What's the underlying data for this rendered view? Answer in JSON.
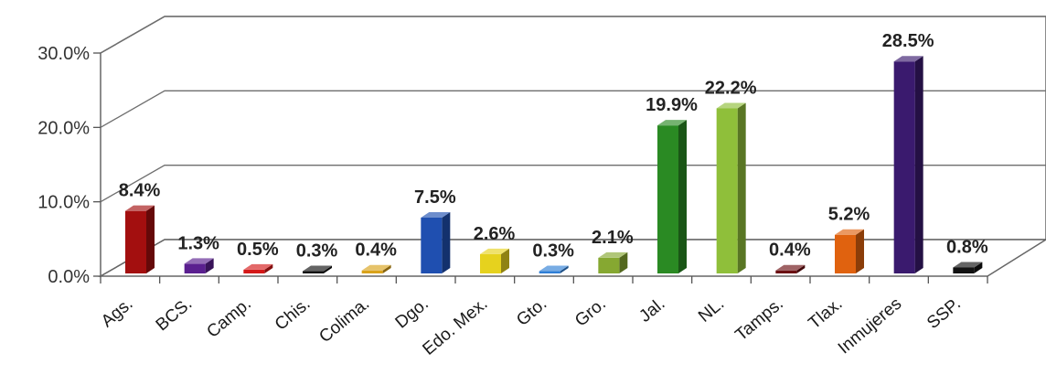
{
  "chart_data": {
    "type": "bar",
    "title": "",
    "xlabel": "",
    "ylabel": "",
    "ylim": [
      0,
      30
    ],
    "y_ticks": [
      "0.0%",
      "10.0%",
      "20.0%",
      "30.0%"
    ],
    "grid": true,
    "legend": "none",
    "style": "3d",
    "categories": [
      "Ags.",
      "BCS.",
      "Camp.",
      "Chis.",
      "Colima.",
      "Dgo.",
      "Edo. Mex.",
      "Gto.",
      "Gro.",
      "Jal.",
      "NL.",
      "Tamps.",
      "Tlax.",
      "Inmujeres",
      "SSP."
    ],
    "values": [
      8.4,
      1.3,
      0.5,
      0.3,
      0.4,
      7.5,
      2.6,
      0.3,
      2.1,
      19.9,
      22.2,
      0.4,
      5.2,
      28.5,
      0.8
    ],
    "data_labels": [
      "8.4%",
      "1.3%",
      "0.5%",
      "0.3%",
      "0.4%",
      "7.5%",
      "2.6%",
      "0.3%",
      "2.1%",
      "19.9%",
      "22.2%",
      "0.4%",
      "5.2%",
      "28.5%",
      "0.8%"
    ],
    "colors": [
      "#a30f0f",
      "#5a1f8f",
      "#d41818",
      "#111111",
      "#d9a21a",
      "#1f4fb0",
      "#e6d21e",
      "#2f7fd6",
      "#86a831",
      "#2a8a23",
      "#8fbf3a",
      "#6b0f12",
      "#e0620f",
      "#3a1a6e",
      "#111111"
    ]
  }
}
